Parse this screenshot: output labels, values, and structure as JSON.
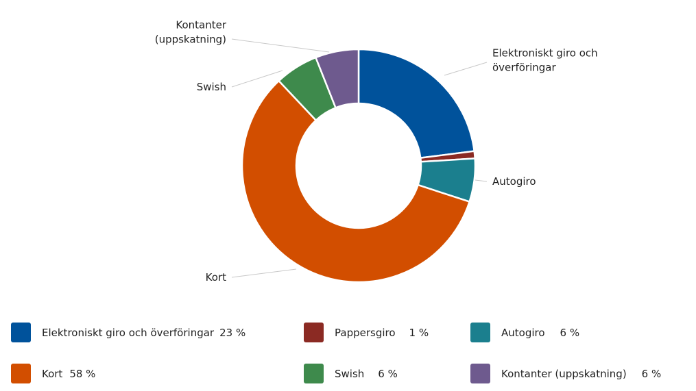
{
  "chart_data": {
    "type": "pie",
    "donut": true,
    "slices": [
      {
        "label": "Elektroniskt giro och överföringar",
        "value": 23,
        "pct_label": "23 %",
        "color": "#00529B",
        "callout_lines": [
          "Elektroniskt giro och",
          "överföringar"
        ]
      },
      {
        "label": "Pappersgiro",
        "value": 1,
        "pct_label": "1 %",
        "color": "#8B2A23",
        "callout_lines": []
      },
      {
        "label": "Autogiro",
        "value": 6,
        "pct_label": "6 %",
        "color": "#1B7F8E",
        "callout_lines": [
          "Autogiro"
        ]
      },
      {
        "label": "Kort",
        "value": 58,
        "pct_label": "58 %",
        "color": "#D24E00",
        "callout_lines": [
          "Kort"
        ]
      },
      {
        "label": "Swish",
        "value": 6,
        "pct_label": "6 %",
        "color": "#3E8A4C",
        "callout_lines": [
          "Swish"
        ]
      },
      {
        "label": "Kontanter (uppskatning)",
        "value": 6,
        "pct_label": "6 %",
        "color": "#6E5A8E",
        "callout_lines": [
          "Kontanter",
          "(uppskatning)"
        ]
      }
    ],
    "legend_position": "bottom"
  }
}
